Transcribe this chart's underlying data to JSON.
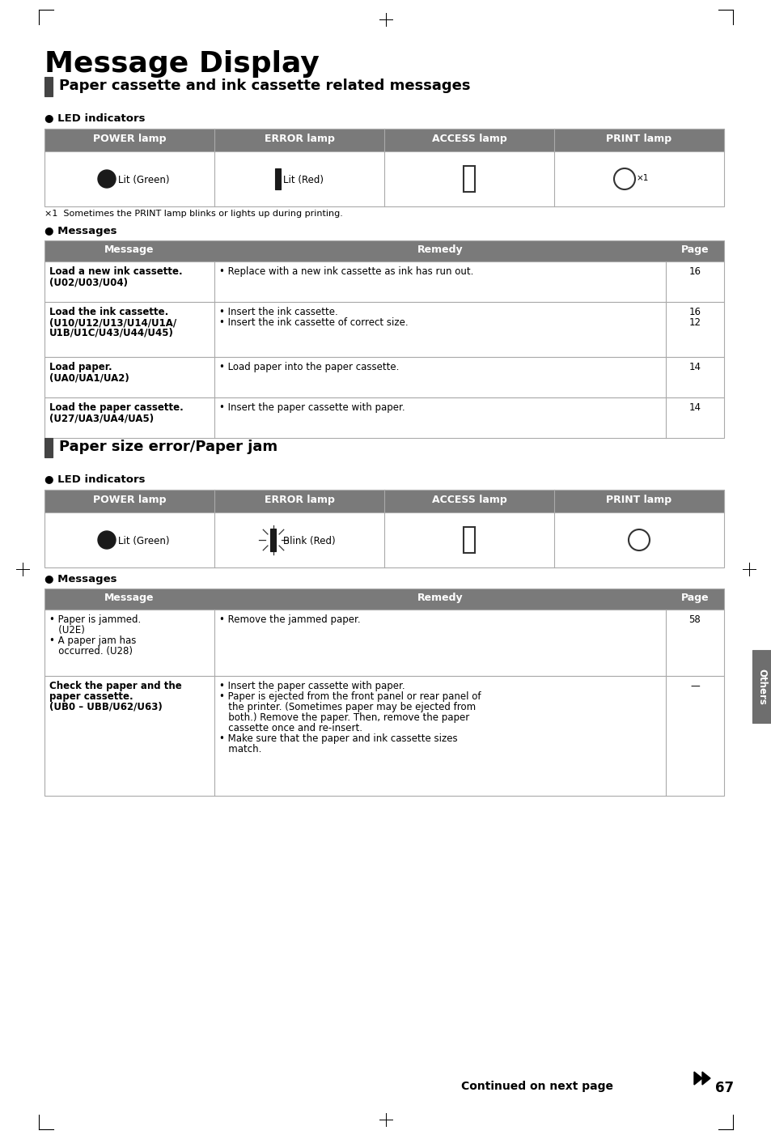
{
  "page_title": "Message Display",
  "section1_title": "Paper cassette and ink cassette related messages",
  "section2_title": "Paper size error/Paper jam",
  "led_headers": [
    "POWER lamp",
    "ERROR lamp",
    "ACCESS lamp",
    "PRINT lamp"
  ],
  "footnote1": "×1  Sometimes the PRINT lamp blinks or lights up during printing.",
  "msg1_headers": [
    "Message",
    "Remedy",
    "Page"
  ],
  "msg1_rows": [
    {
      "message": "Load a new ink cassette.\n(U02/U03/U04)",
      "remedy": "• Replace with a new ink cassette as ink has run out.",
      "page": "16"
    },
    {
      "message": "Load the ink cassette.\n(U10/U12/U13/U14/U1A/\nU1B/U1C/U43/U44/U45)",
      "remedy": "• Insert the ink cassette.\n• Insert the ink cassette of correct size.",
      "page": "16\n12"
    },
    {
      "message": "Load paper.\n(UA0/UA1/UA2)",
      "remedy": "• Load paper into the paper cassette.",
      "page": "14"
    },
    {
      "message": "Load the paper cassette.\n(U27/UA3/UA4/UA5)",
      "remedy": "• Insert the paper cassette with paper.",
      "page": "14"
    }
  ],
  "msg2_headers": [
    "Message",
    "Remedy",
    "Page"
  ],
  "msg2_rows": [
    {
      "message": "• Paper is jammed.\n   (U2E)\n• A paper jam has\n   occurred. (U28)",
      "remedy": "• Remove the jammed paper.",
      "page": "58"
    },
    {
      "message": "Check the paper and the\npaper cassette.\n(UB0 – UBB/U62/U63)",
      "remedy": "• Insert the paper cassette with paper.\n• Paper is ejected from the front panel or rear panel of\n   the printer. (Sometimes paper may be ejected from\n   both.) Remove the paper. Then, remove the paper\n   cassette once and re-insert.\n• Make sure that the paper and ink cassette sizes\n   match.",
      "page": "—"
    }
  ],
  "footer_text": "Continued on next page",
  "page_number": "67",
  "header_bg": "#7a7a7a",
  "header_fg": "#ffffff",
  "border_color": "#aaaaaa",
  "section_bar_color": "#444444",
  "others_bg": "#6e6e6e",
  "bg_color": "#ffffff"
}
